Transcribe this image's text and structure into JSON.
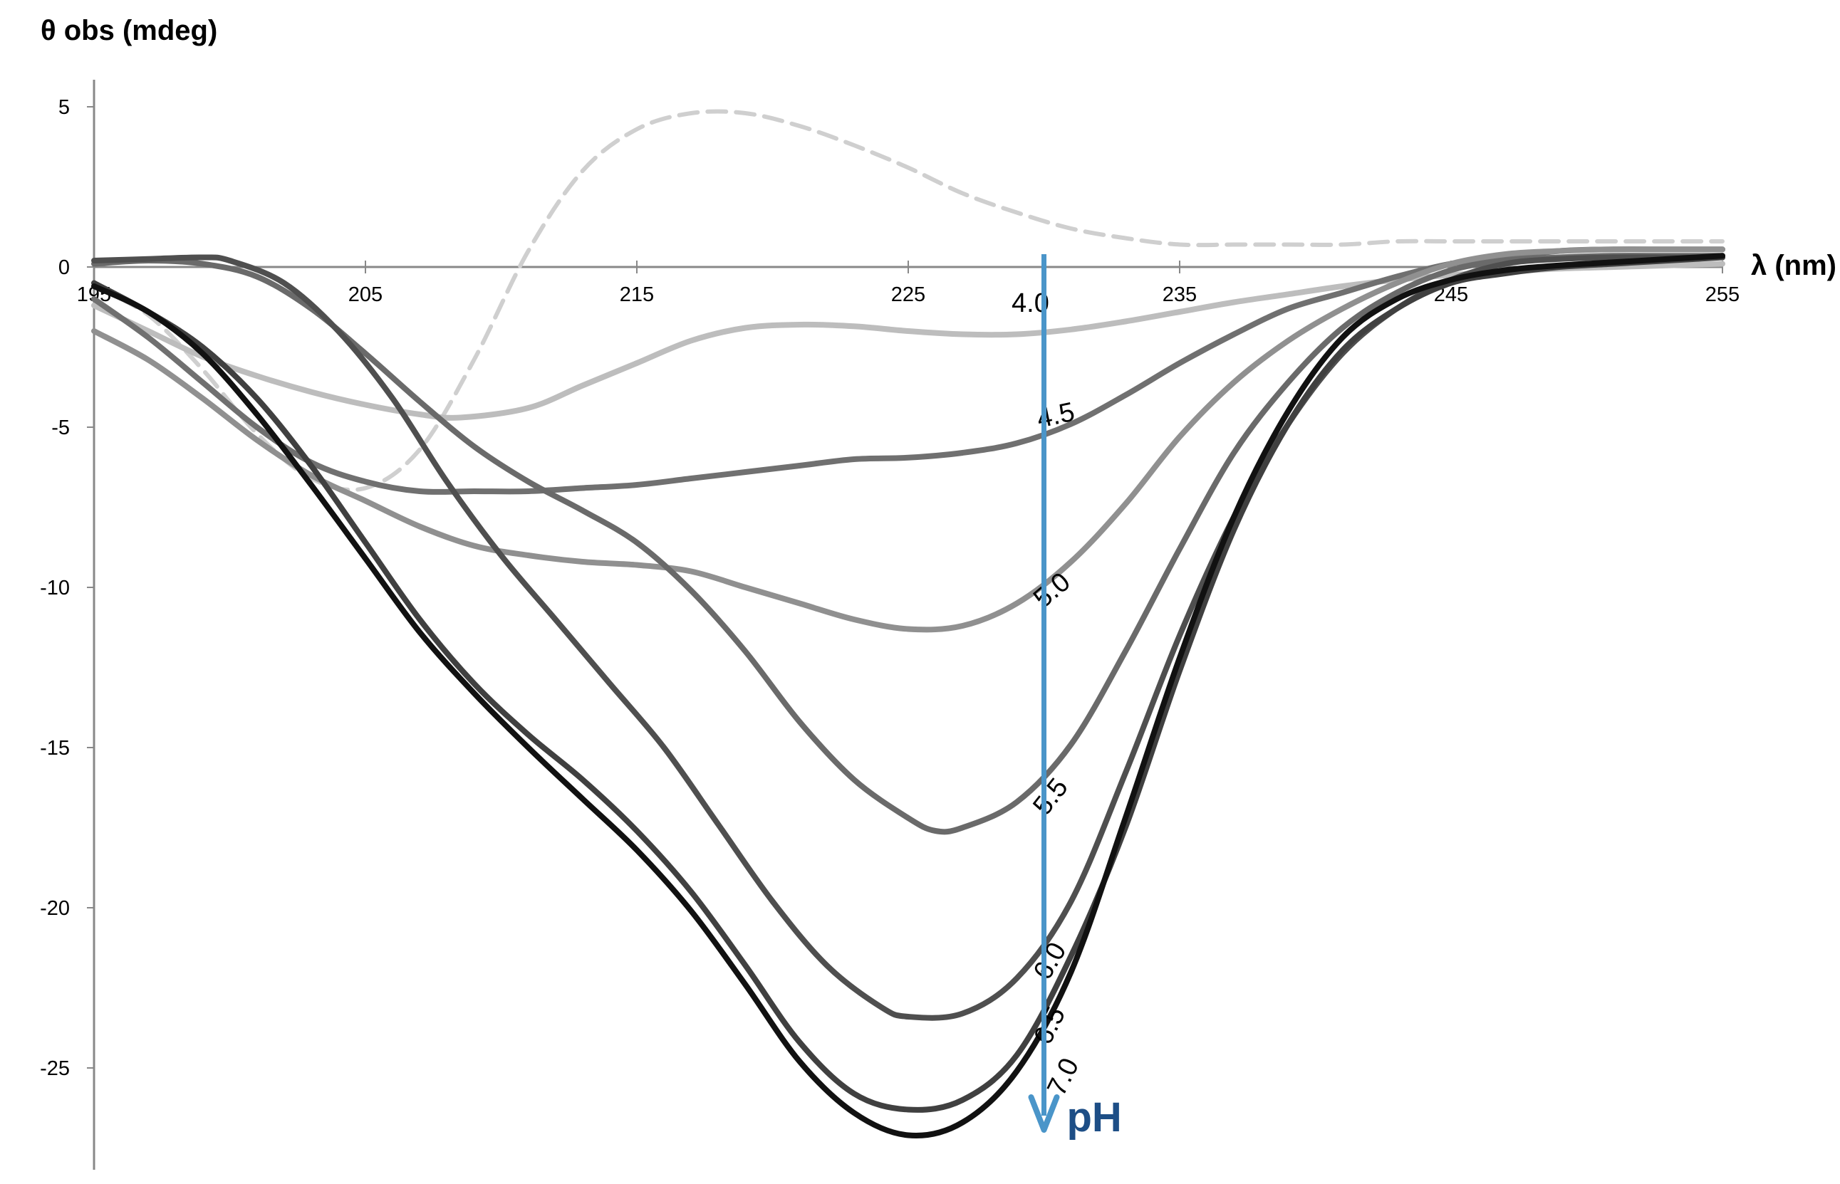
{
  "chart_data": {
    "type": "line",
    "ylabel": "θ obs (mdeg)",
    "xlabel": "λ (nm)",
    "xlim": [
      195,
      255
    ],
    "ylim": [
      -28,
      6
    ],
    "x_ticks": [
      195,
      205,
      215,
      225,
      235,
      245,
      255
    ],
    "y_ticks": [
      5,
      0,
      -5,
      -10,
      -15,
      -20,
      -25
    ],
    "grid": false,
    "legend": "none",
    "arrow": {
      "x": 230,
      "y_start": 0.4,
      "y_end": -26.8,
      "label": "pH",
      "color": "#4a95c9",
      "label_color": "#1d4e86"
    },
    "series": [
      {
        "name": "",
        "style": "dashed",
        "color": "#cfcfcf",
        "points": [
          [
            195,
            -0.6
          ],
          [
            197,
            -1.5
          ],
          [
            199,
            -3.2
          ],
          [
            201,
            -5.2
          ],
          [
            203,
            -6.6
          ],
          [
            205,
            -6.9
          ],
          [
            207,
            -5.7
          ],
          [
            209,
            -2.9
          ],
          [
            211,
            0.5
          ],
          [
            213,
            3.0
          ],
          [
            215,
            4.3
          ],
          [
            217,
            4.8
          ],
          [
            219,
            4.8
          ],
          [
            221,
            4.4
          ],
          [
            223,
            3.8
          ],
          [
            225,
            3.1
          ],
          [
            227,
            2.3
          ],
          [
            229,
            1.7
          ],
          [
            231,
            1.2
          ],
          [
            233,
            0.9
          ],
          [
            235,
            0.7
          ],
          [
            237,
            0.7
          ],
          [
            239,
            0.7
          ],
          [
            241,
            0.7
          ],
          [
            243,
            0.8
          ],
          [
            245,
            0.8
          ],
          [
            247,
            0.8
          ],
          [
            249,
            0.8
          ],
          [
            251,
            0.8
          ],
          [
            253,
            0.8
          ],
          [
            255,
            0.8
          ]
        ]
      },
      {
        "name": "4.0",
        "color": "#bdbdbd",
        "label_at": [
          229.5,
          -1.4
        ],
        "label_angle": 0,
        "points": [
          [
            195,
            -1.2
          ],
          [
            197,
            -2.0
          ],
          [
            199,
            -2.8
          ],
          [
            201,
            -3.4
          ],
          [
            203,
            -3.9
          ],
          [
            205,
            -4.3
          ],
          [
            207,
            -4.6
          ],
          [
            208.5,
            -4.7
          ],
          [
            211,
            -4.4
          ],
          [
            213,
            -3.7
          ],
          [
            215,
            -3.0
          ],
          [
            217,
            -2.3
          ],
          [
            219,
            -1.9
          ],
          [
            221,
            -1.8
          ],
          [
            223,
            -1.85
          ],
          [
            225,
            -2.0
          ],
          [
            227,
            -2.1
          ],
          [
            229,
            -2.1
          ],
          [
            231,
            -1.95
          ],
          [
            233,
            -1.7
          ],
          [
            235,
            -1.4
          ],
          [
            237,
            -1.1
          ],
          [
            239,
            -0.85
          ],
          [
            241,
            -0.6
          ],
          [
            243,
            -0.4
          ],
          [
            245,
            -0.25
          ],
          [
            247,
            -0.15
          ],
          [
            249,
            -0.05
          ],
          [
            251,
            0.0
          ],
          [
            253,
            0.05
          ],
          [
            255,
            0.1
          ]
        ]
      },
      {
        "name": "4.5",
        "color": "#707070",
        "label_at": [
          230.5,
          -4.9
        ],
        "label_angle": -12,
        "points": [
          [
            195,
            -1.0
          ],
          [
            197,
            -2.2
          ],
          [
            199,
            -3.6
          ],
          [
            201,
            -5.0
          ],
          [
            203,
            -6.1
          ],
          [
            205,
            -6.7
          ],
          [
            207,
            -7.0
          ],
          [
            209,
            -7.0
          ],
          [
            211,
            -7.0
          ],
          [
            213,
            -6.9
          ],
          [
            215,
            -6.8
          ],
          [
            217,
            -6.6
          ],
          [
            219,
            -6.4
          ],
          [
            221,
            -6.2
          ],
          [
            223,
            -6.0
          ],
          [
            225,
            -5.95
          ],
          [
            227,
            -5.8
          ],
          [
            229,
            -5.5
          ],
          [
            231,
            -4.9
          ],
          [
            233,
            -4.0
          ],
          [
            235,
            -3.0
          ],
          [
            237,
            -2.1
          ],
          [
            239,
            -1.3
          ],
          [
            241,
            -0.8
          ],
          [
            243,
            -0.3
          ],
          [
            245,
            0.1
          ],
          [
            247,
            0.3
          ],
          [
            249,
            0.5
          ],
          [
            251,
            0.55
          ],
          [
            253,
            0.55
          ],
          [
            255,
            0.55
          ]
        ]
      },
      {
        "name": "5.0",
        "color": "#909090",
        "label_at": [
          230.5,
          -10.3
        ],
        "label_angle": -40,
        "points": [
          [
            195,
            -2.0
          ],
          [
            197,
            -2.9
          ],
          [
            199,
            -4.1
          ],
          [
            201,
            -5.4
          ],
          [
            203,
            -6.5
          ],
          [
            205,
            -7.3
          ],
          [
            207,
            -8.1
          ],
          [
            209,
            -8.7
          ],
          [
            211,
            -9.0
          ],
          [
            213,
            -9.2
          ],
          [
            215,
            -9.3
          ],
          [
            217,
            -9.5
          ],
          [
            219,
            -10.0
          ],
          [
            221,
            -10.5
          ],
          [
            223,
            -11.0
          ],
          [
            225,
            -11.3
          ],
          [
            227,
            -11.2
          ],
          [
            229,
            -10.5
          ],
          [
            231,
            -9.2
          ],
          [
            233,
            -7.4
          ],
          [
            235,
            -5.3
          ],
          [
            237,
            -3.6
          ],
          [
            239,
            -2.3
          ],
          [
            241,
            -1.3
          ],
          [
            243,
            -0.5
          ],
          [
            245,
            0.1
          ],
          [
            247,
            0.4
          ],
          [
            249,
            0.5
          ],
          [
            251,
            0.55
          ],
          [
            253,
            0.55
          ],
          [
            255,
            0.55
          ]
        ]
      },
      {
        "name": "5.5",
        "color": "#6a6a6a",
        "label_at": [
          230.5,
          -16.7
        ],
        "label_angle": -52,
        "points": [
          [
            195,
            0.1
          ],
          [
            197,
            0.2
          ],
          [
            199,
            0.1
          ],
          [
            201,
            -0.3
          ],
          [
            203,
            -1.3
          ],
          [
            205,
            -2.7
          ],
          [
            207,
            -4.2
          ],
          [
            209,
            -5.6
          ],
          [
            211,
            -6.7
          ],
          [
            213,
            -7.6
          ],
          [
            215,
            -8.6
          ],
          [
            217,
            -10.1
          ],
          [
            219,
            -12.0
          ],
          [
            221,
            -14.2
          ],
          [
            223,
            -16.0
          ],
          [
            225,
            -17.2
          ],
          [
            226,
            -17.6
          ],
          [
            227,
            -17.5
          ],
          [
            229,
            -16.7
          ],
          [
            231,
            -14.9
          ],
          [
            233,
            -12.0
          ],
          [
            235,
            -8.8
          ],
          [
            237,
            -5.8
          ],
          [
            239,
            -3.6
          ],
          [
            241,
            -1.9
          ],
          [
            243,
            -0.8
          ],
          [
            245,
            -0.1
          ],
          [
            247,
            0.2
          ],
          [
            249,
            0.3
          ],
          [
            251,
            0.35
          ],
          [
            253,
            0.35
          ],
          [
            255,
            0.35
          ]
        ]
      },
      {
        "name": "6.0",
        "color": "#4f4f4f",
        "label_at": [
          230.5,
          -21.8
        ],
        "label_angle": -60,
        "points": [
          [
            195,
            0.2
          ],
          [
            197,
            0.25
          ],
          [
            199,
            0.3
          ],
          [
            200,
            0.2
          ],
          [
            202,
            -0.5
          ],
          [
            204,
            -2.0
          ],
          [
            206,
            -4.1
          ],
          [
            208,
            -6.7
          ],
          [
            210,
            -9.0
          ],
          [
            212,
            -11.0
          ],
          [
            214,
            -13.0
          ],
          [
            216,
            -15.0
          ],
          [
            218,
            -17.4
          ],
          [
            220,
            -19.8
          ],
          [
            222,
            -21.8
          ],
          [
            224,
            -23.1
          ],
          [
            225,
            -23.4
          ],
          [
            227,
            -23.3
          ],
          [
            229,
            -22.2
          ],
          [
            231,
            -19.8
          ],
          [
            233,
            -15.8
          ],
          [
            235,
            -11.5
          ],
          [
            237,
            -7.8
          ],
          [
            239,
            -4.9
          ],
          [
            241,
            -2.7
          ],
          [
            243,
            -1.3
          ],
          [
            245,
            -0.4
          ],
          [
            247,
            0.1
          ],
          [
            249,
            0.25
          ],
          [
            251,
            0.3
          ],
          [
            253,
            0.3
          ],
          [
            255,
            0.3
          ]
        ]
      },
      {
        "name": "6.5",
        "color": "#404040",
        "label_at": [
          230.5,
          -23.8
        ],
        "label_angle": -64,
        "points": [
          [
            195,
            -0.5
          ],
          [
            197,
            -1.4
          ],
          [
            199,
            -2.5
          ],
          [
            201,
            -4.1
          ],
          [
            203,
            -6.2
          ],
          [
            205,
            -8.6
          ],
          [
            207,
            -11.0
          ],
          [
            209,
            -13.0
          ],
          [
            211,
            -14.6
          ],
          [
            213,
            -16.0
          ],
          [
            215,
            -17.6
          ],
          [
            217,
            -19.5
          ],
          [
            219,
            -21.8
          ],
          [
            221,
            -24.2
          ],
          [
            223,
            -25.8
          ],
          [
            225,
            -26.3
          ],
          [
            227,
            -26.0
          ],
          [
            229,
            -24.6
          ],
          [
            231,
            -21.5
          ],
          [
            233,
            -17.5
          ],
          [
            235,
            -12.6
          ],
          [
            237,
            -8.2
          ],
          [
            239,
            -4.9
          ],
          [
            241,
            -2.6
          ],
          [
            243,
            -1.3
          ],
          [
            245,
            -0.5
          ],
          [
            247,
            -0.2
          ],
          [
            249,
            0.0
          ],
          [
            251,
            0.1
          ],
          [
            253,
            0.2
          ],
          [
            255,
            0.3
          ]
        ]
      },
      {
        "name": "7.0",
        "color": "#111111",
        "label_at": [
          231.0,
          -25.4
        ],
        "label_angle": -64,
        "points": [
          [
            195,
            -0.6
          ],
          [
            197,
            -1.4
          ],
          [
            199,
            -2.7
          ],
          [
            201,
            -4.6
          ],
          [
            203,
            -6.8
          ],
          [
            205,
            -9.1
          ],
          [
            207,
            -11.4
          ],
          [
            209,
            -13.3
          ],
          [
            211,
            -15.0
          ],
          [
            213,
            -16.6
          ],
          [
            215,
            -18.2
          ],
          [
            217,
            -20.1
          ],
          [
            219,
            -22.4
          ],
          [
            221,
            -24.8
          ],
          [
            223,
            -26.4
          ],
          [
            225,
            -27.1
          ],
          [
            227,
            -26.7
          ],
          [
            229,
            -25.1
          ],
          [
            231,
            -22.0
          ],
          [
            233,
            -17.2
          ],
          [
            235,
            -12.2
          ],
          [
            237,
            -7.8
          ],
          [
            239,
            -4.5
          ],
          [
            241,
            -2.2
          ],
          [
            243,
            -1.0
          ],
          [
            245,
            -0.4
          ],
          [
            247,
            -0.1
          ],
          [
            249,
            0.05
          ],
          [
            251,
            0.15
          ],
          [
            253,
            0.25
          ],
          [
            255,
            0.35
          ]
        ]
      }
    ]
  }
}
